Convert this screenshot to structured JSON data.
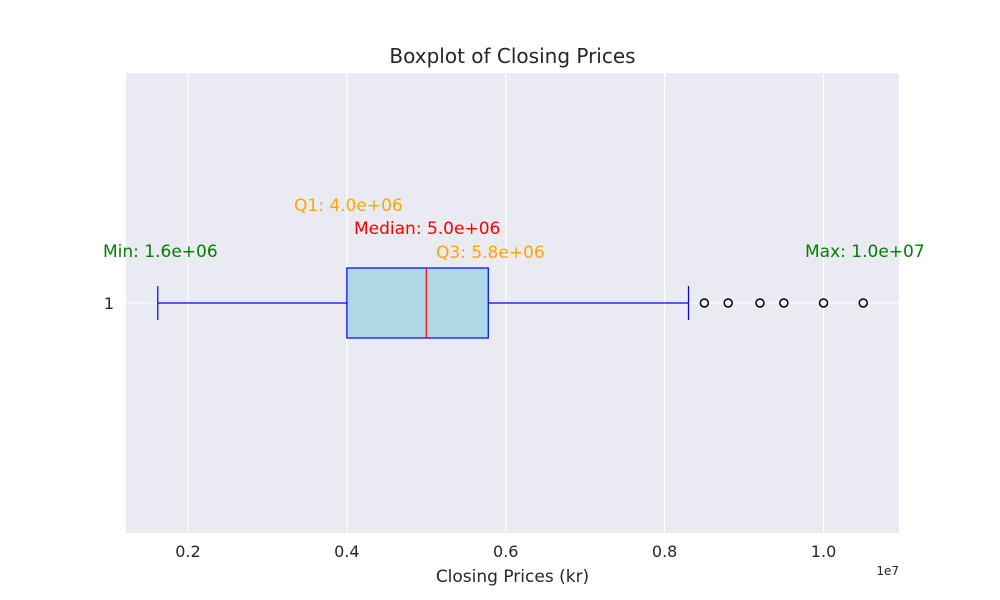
{
  "chart_data": {
    "type": "boxplot",
    "orientation": "horizontal",
    "title": "Boxplot of Closing Prices",
    "xlabel": "Closing Prices (kr)",
    "ylabel": "",
    "x_scale_label": "1e7",
    "xlim": [
      1220000,
      10950000
    ],
    "x_ticks": [
      2000000,
      4000000,
      6000000,
      8000000,
      10000000
    ],
    "x_tick_labels": [
      "0.2",
      "0.4",
      "0.6",
      "0.8",
      "1.0"
    ],
    "y_tick_labels": [
      "1"
    ],
    "grid": true,
    "box": {
      "label": "1",
      "whisker_low": 1620000,
      "q1": 4000000,
      "median": 5000000,
      "q3": 5780000,
      "whisker_high": 8300000,
      "outliers": [
        8500000,
        8800000,
        9200000,
        9500000,
        10000000,
        10500000
      ]
    },
    "annotations": [
      {
        "key": "min",
        "text": "Min: 1.6e+06",
        "color": "#008000"
      },
      {
        "key": "q1",
        "text": "Q1: 4.0e+06",
        "color": "#ffa500"
      },
      {
        "key": "median",
        "text": "Median: 5.0e+06",
        "color": "#ff0000"
      },
      {
        "key": "q3",
        "text": "Q3: 5.8e+06",
        "color": "#ffa500"
      },
      {
        "key": "max",
        "text": "Max: 1.0e+07",
        "color": "#008000"
      }
    ],
    "colors": {
      "plot_background": "#eaeaf2",
      "grid": "#ffffff",
      "box_fill": "#add8e6",
      "box_edge": "#0000ff",
      "median_line": "#ff0000",
      "whisker": "#0000ff",
      "outlier_edge": "#000000"
    }
  }
}
